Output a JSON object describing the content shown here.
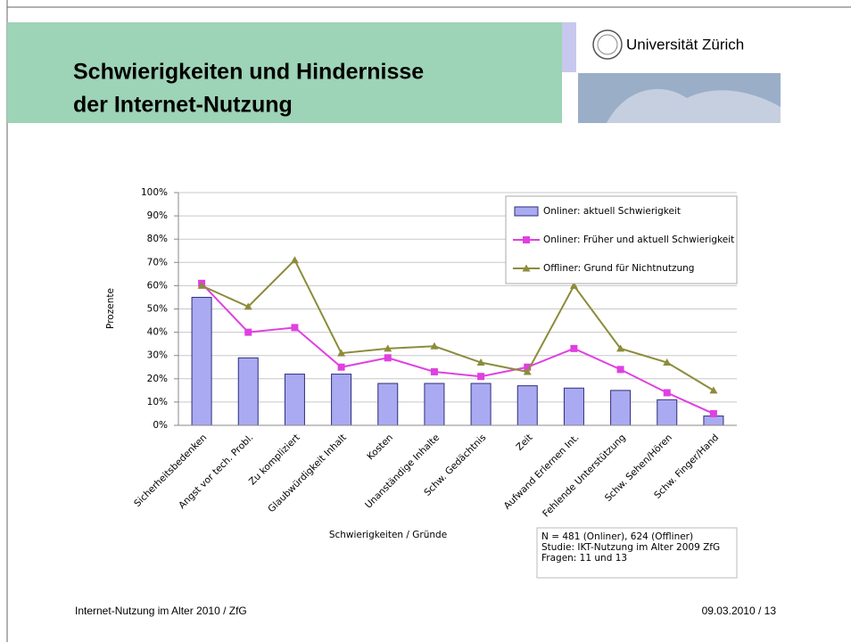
{
  "header": {
    "title": [
      "Schwierigkeiten und Hindernisse",
      "der Internet-Nutzung"
    ],
    "logo_text": "Universität Zürich"
  },
  "chart_data": {
    "type": "bar",
    "y_label": "Prozente",
    "x_label": "Schwierigkeiten / Gründe",
    "categories": [
      "Sicherheitsbedenken",
      "Angst vor tech. Probl.",
      "Zu kompliziert",
      "Glaubwürdigkeit Inhalt",
      "Kosten",
      "Unanständige Inhalte",
      "Schw. Gedächtnis",
      "Zeit",
      "Aufwand Erlernen Int.",
      "Fehlende Unterstützung",
      "Schw. Sehen/Hören",
      "Schw. Finger/Hand"
    ],
    "series": [
      {
        "name": "Onliner: aktuell Schwierigkeit",
        "type": "bar",
        "color": "#aaaaf2",
        "values": [
          55,
          29,
          22,
          22,
          18,
          18,
          18,
          17,
          16,
          15,
          11,
          4
        ]
      },
      {
        "name": "Onliner: Früher und aktuell Schwierigkeit",
        "type": "line",
        "marker": "square",
        "color": "#e040e0",
        "values": [
          61,
          40,
          42,
          25,
          29,
          23,
          21,
          25,
          33,
          24,
          14,
          5
        ]
      },
      {
        "name": "Offliner: Grund für Nichtnutzung",
        "type": "line",
        "marker": "triangle",
        "color": "#8c8c3c",
        "values": [
          60,
          51,
          71,
          31,
          33,
          34,
          27,
          23,
          60,
          33,
          27,
          15
        ]
      }
    ],
    "ylim": [
      0,
      100
    ],
    "yticks": [
      {
        "value": 0,
        "label": "0%"
      },
      {
        "value": 10,
        "label": "10%"
      },
      {
        "value": 20,
        "label": "20%"
      },
      {
        "value": 30,
        "label": "30%"
      },
      {
        "value": 40,
        "label": "40%"
      },
      {
        "value": 50,
        "label": "50%"
      },
      {
        "value": 60,
        "label": "60%"
      },
      {
        "value": 70,
        "label": "70%"
      },
      {
        "value": 80,
        "label": "80%"
      },
      {
        "value": 90,
        "label": "90%"
      },
      {
        "value": 100,
        "label": "100%"
      }
    ],
    "grid": true,
    "legend": "top-right",
    "note": [
      "N = 481 (Onliner), 624 (Offliner)",
      "Studie: IKT-Nutzung im Alter 2009 ZfG",
      "Fragen: 11 und 13"
    ]
  },
  "footer": {
    "left": "Internet-Nutzung im Alter 2010 / ZfG",
    "right": "09.03.2010  /  13"
  }
}
